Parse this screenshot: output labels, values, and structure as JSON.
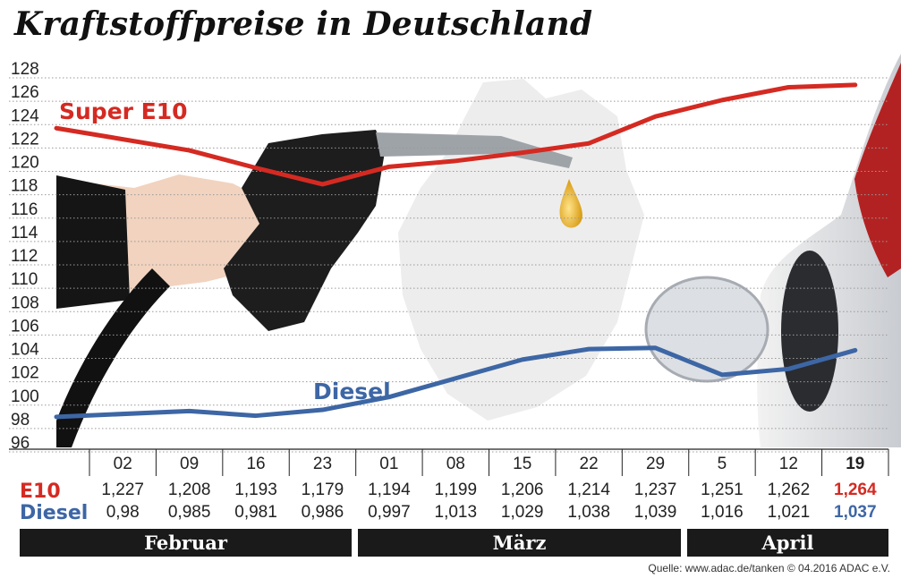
{
  "title": "Kraftstoffpreise in Deutschland",
  "source": "Quelle: www.adac.de/tanken  © 04.2016  ADAC e.V.",
  "colors": {
    "e10": "#d42a22",
    "diesel": "#3d66a5",
    "bar": "#1a1a1a"
  },
  "chart_data": {
    "type": "line",
    "title": "Kraftstoffpreise in Deutschland",
    "ylim": [
      96,
      128
    ],
    "yticks": [
      "128",
      "126",
      "124",
      "122",
      "120",
      "118",
      "116",
      "114",
      "112",
      "110",
      "108",
      "106",
      "104",
      "102",
      "100",
      "98",
      "96"
    ],
    "x": [
      "02",
      "09",
      "16",
      "23",
      "01",
      "08",
      "15",
      "22",
      "29",
      "5",
      "12",
      "19"
    ],
    "months": [
      {
        "name": "Februar",
        "from": 0,
        "to": 3
      },
      {
        "name": "März",
        "from": 4,
        "to": 8
      },
      {
        "name": "April",
        "from": 9,
        "to": 11
      }
    ],
    "grid": true,
    "series": [
      {
        "name": "Super E10",
        "row_label": "E10",
        "color": "#d42a22",
        "values": [
          122.7,
          120.8,
          119.3,
          117.9,
          119.4,
          119.9,
          120.6,
          121.4,
          123.7,
          125.1,
          126.2,
          126.4
        ],
        "labels": [
          "1,227",
          "1,208",
          "1,193",
          "1,179",
          "1,194",
          "1,199",
          "1,206",
          "1,214",
          "1,237",
          "1,251",
          "1,262",
          "1,264"
        ]
      },
      {
        "name": "Diesel",
        "row_label": "Diesel",
        "color": "#3d66a5",
        "values": [
          98.0,
          98.5,
          98.1,
          98.6,
          99.7,
          101.3,
          102.9,
          103.8,
          103.9,
          101.6,
          102.1,
          103.7
        ],
        "labels": [
          "0,98",
          "0,985",
          "0,981",
          "0,986",
          "0,997",
          "1,013",
          "1,029",
          "1,038",
          "1,039",
          "1,016",
          "1,021",
          "1,037"
        ]
      }
    ]
  }
}
